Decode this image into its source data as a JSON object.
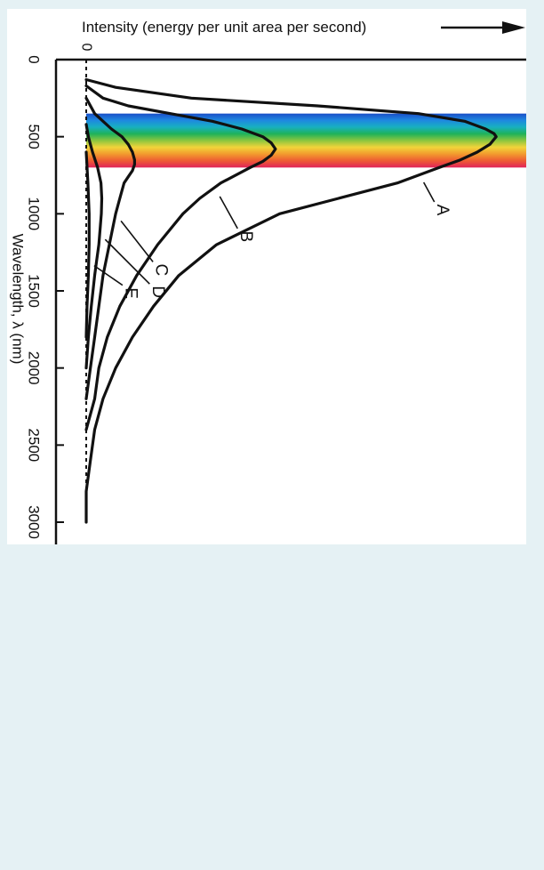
{
  "chart_data": {
    "type": "line",
    "orientation": "rotated",
    "intensity_axis_label": "Intensity (energy per unit area per second)",
    "intensity_zero_label": "0",
    "wavelength_axis_label": "Wavelength, λ (nm)",
    "wavelength_ticks": [
      "0",
      "500",
      "1000",
      "1500",
      "2000",
      "2500",
      "3000"
    ],
    "wavelength_tick_values": [
      0,
      500,
      1000,
      1500,
      2000,
      2500,
      3000
    ],
    "wavelength_range": [
      0,
      3000
    ],
    "intensity_range": [
      0,
      1.0
    ],
    "visible_band": {
      "from_nm": 350,
      "to_nm": 700
    },
    "spectrum_colors": [
      "#1a4fc8",
      "#1e88e0",
      "#18b0c0",
      "#1fb25a",
      "#8cc63f",
      "#f2d43a",
      "#f29a2e",
      "#ee5a33",
      "#e0245a"
    ],
    "series": [
      {
        "label": "A",
        "x": [
          130,
          180,
          250,
          300,
          350,
          400,
          450,
          480,
          500,
          550,
          600,
          650,
          700,
          800,
          900,
          1000,
          1200,
          1400,
          1600,
          1800,
          2000,
          2200,
          2400,
          2600,
          2800,
          3000
        ],
        "y": [
          0.0,
          0.07,
          0.25,
          0.55,
          0.79,
          0.9,
          0.95,
          0.97,
          0.975,
          0.96,
          0.93,
          0.89,
          0.84,
          0.74,
          0.6,
          0.46,
          0.31,
          0.22,
          0.16,
          0.11,
          0.07,
          0.04,
          0.02,
          0.01,
          0.0,
          0.0
        ]
      },
      {
        "label": "B",
        "x": [
          170,
          250,
          300,
          350,
          400,
          450,
          500,
          540,
          580,
          620,
          660,
          700,
          800,
          900,
          1000,
          1200,
          1400,
          1600,
          1800,
          2000,
          2200,
          2400
        ],
        "y": [
          0.0,
          0.04,
          0.1,
          0.2,
          0.3,
          0.37,
          0.42,
          0.44,
          0.45,
          0.44,
          0.42,
          0.39,
          0.32,
          0.27,
          0.23,
          0.17,
          0.12,
          0.08,
          0.05,
          0.03,
          0.02,
          0.0
        ]
      },
      {
        "label": "C",
        "x": [
          250,
          350,
          400,
          450,
          500,
          550,
          600,
          650,
          680,
          720,
          760,
          800,
          850,
          900,
          1000,
          1200,
          1400,
          1600,
          1800,
          2000,
          2200
        ],
        "y": [
          0.0,
          0.02,
          0.04,
          0.06,
          0.085,
          0.1,
          0.11,
          0.115,
          0.115,
          0.11,
          0.1,
          0.09,
          0.085,
          0.08,
          0.07,
          0.055,
          0.04,
          0.03,
          0.02,
          0.01,
          0.0
        ]
      },
      {
        "label": "D",
        "x": [
          420,
          500,
          600,
          700,
          800,
          900,
          1000,
          1100,
          1200,
          1300,
          1400,
          1600,
          1800,
          2000
        ],
        "y": [
          0.0,
          0.005,
          0.015,
          0.027,
          0.035,
          0.037,
          0.036,
          0.033,
          0.03,
          0.025,
          0.02,
          0.012,
          0.005,
          0.0
        ]
      },
      {
        "label": "E",
        "x": [
          600,
          800,
          1000,
          1200,
          1400,
          1600,
          1800
        ],
        "y": [
          0.0,
          0.004,
          0.007,
          0.007,
          0.005,
          0.002,
          0.0
        ]
      }
    ],
    "grid": false,
    "legend": "none"
  }
}
